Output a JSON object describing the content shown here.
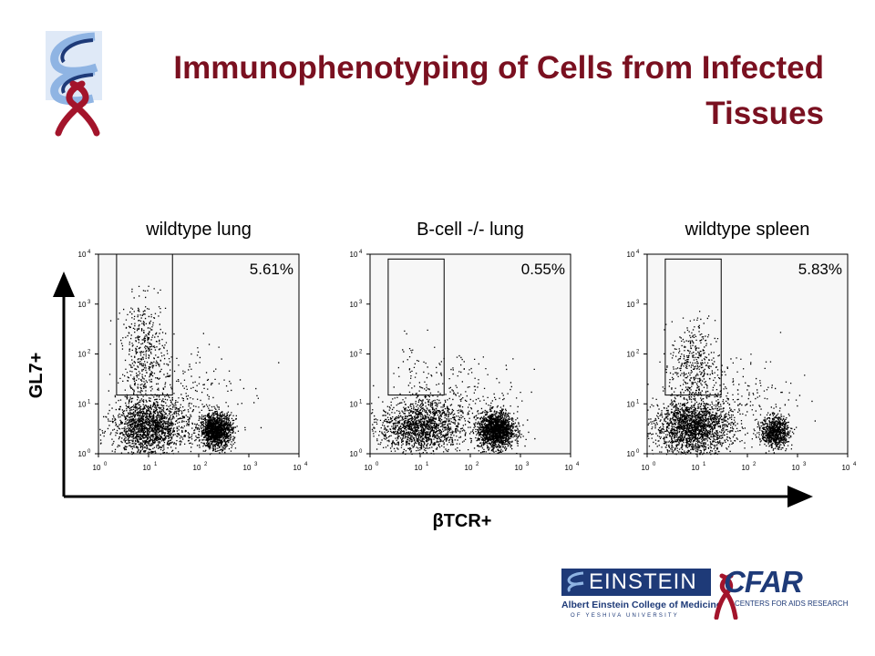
{
  "slide": {
    "title_line1": "Immunophenotyping of Cells from Infected",
    "title_line2": "Tissues"
  },
  "logos": {
    "top_logo": "cfar-helix-ribbon-logo",
    "footer": {
      "einstein": "EINSTEIN",
      "college": "Albert Einstein College of Medicine",
      "university": "OF YESHIVA UNIVERSITY",
      "cfar": "CFAR",
      "cfar_full": "CENTERS FOR AIDS RESEARCH"
    }
  },
  "colors": {
    "title": "#7a1020",
    "navy": "#1e3a78",
    "ribbon": "#a3142b",
    "helix_light": "#8fb4e3"
  },
  "chart_data": {
    "type": "scatter",
    "description_free": true,
    "x_axis_label": "βTCR+",
    "y_axis_label": "GL7+",
    "x_scale": "log",
    "y_scale": "log",
    "xlim": [
      1,
      10000
    ],
    "ylim": [
      1,
      10000
    ],
    "tick_labels": [
      "10",
      "10",
      "10",
      "10",
      "10"
    ],
    "tick_exponents": [
      "0",
      "1",
      "2",
      "3",
      "4"
    ],
    "panels": [
      {
        "title": "wildtype lung",
        "gate_percent": "5.61%",
        "gate": {
          "x_range": [
            2.3,
            30
          ],
          "y_range": [
            15,
            10000
          ]
        },
        "clusters": [
          {
            "label": "GL7- TCR-",
            "x_center": 10,
            "y_center": 3.5,
            "x_spread_log": 0.35,
            "y_spread_log": 0.28,
            "events": 1700
          },
          {
            "label": "GL7- TCR+",
            "x_center": 220,
            "y_center": 3,
            "x_spread_log": 0.16,
            "y_spread_log": 0.17,
            "events": 1400
          },
          {
            "label": "GL7+ gated",
            "x_center": 8,
            "y_center": 120,
            "x_spread_log": 0.22,
            "y_spread_log": 0.5,
            "events": 420
          },
          {
            "label": "diffuse",
            "x_center": 40,
            "y_center": 15,
            "x_spread_log": 0.6,
            "y_spread_log": 0.55,
            "events": 280
          }
        ]
      },
      {
        "title": "B-cell -/- lung",
        "gate_percent": "0.55%",
        "gate": {
          "x_range": [
            2.3,
            30
          ],
          "y_range": [
            15,
            8000
          ]
        },
        "clusters": [
          {
            "label": "GL7- TCR-",
            "x_center": 10,
            "y_center": 3.5,
            "x_spread_log": 0.4,
            "y_spread_log": 0.26,
            "events": 1500
          },
          {
            "label": "GL7- TCR+",
            "x_center": 320,
            "y_center": 3,
            "x_spread_log": 0.18,
            "y_spread_log": 0.18,
            "events": 1700
          },
          {
            "label": "GL7+ gated",
            "x_center": 8,
            "y_center": 60,
            "x_spread_log": 0.25,
            "y_spread_log": 0.4,
            "events": 40
          },
          {
            "label": "diffuse",
            "x_center": 60,
            "y_center": 12,
            "x_spread_log": 0.6,
            "y_spread_log": 0.45,
            "events": 260
          }
        ]
      },
      {
        "title": "wildtype spleen",
        "gate_percent": "5.83%",
        "gate": {
          "x_range": [
            2.3,
            30
          ],
          "y_range": [
            15,
            8000
          ]
        },
        "clusters": [
          {
            "label": "GL7- TCR-",
            "x_center": 8,
            "y_center": 3.5,
            "x_spread_log": 0.38,
            "y_spread_log": 0.27,
            "events": 1900
          },
          {
            "label": "GL7- TCR+",
            "x_center": 350,
            "y_center": 2.8,
            "x_spread_log": 0.14,
            "y_spread_log": 0.15,
            "events": 800
          },
          {
            "label": "GL7+ gated",
            "x_center": 8,
            "y_center": 60,
            "x_spread_log": 0.22,
            "y_spread_log": 0.45,
            "events": 380
          },
          {
            "label": "diffuse",
            "x_center": 50,
            "y_center": 12,
            "x_spread_log": 0.6,
            "y_spread_log": 0.5,
            "events": 260
          }
        ]
      }
    ]
  }
}
